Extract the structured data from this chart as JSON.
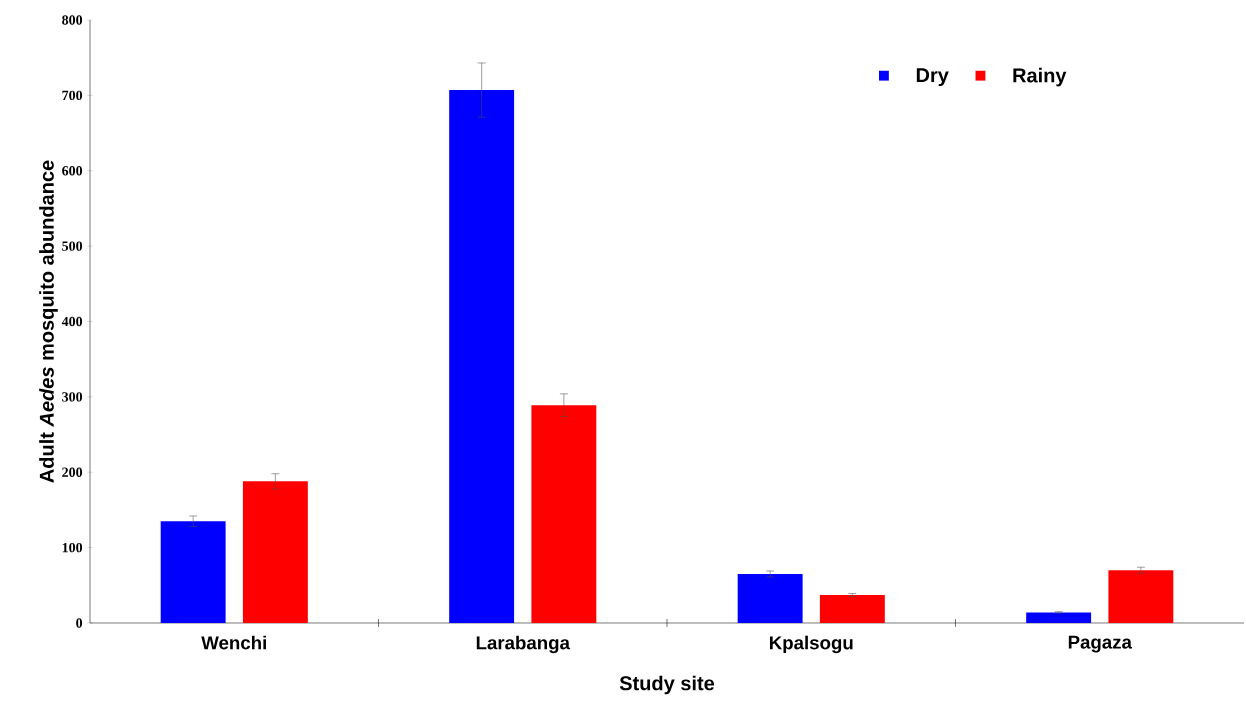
{
  "chart_data": {
    "type": "bar",
    "xlabel": "Study site",
    "ylabel": "Adult *Aedes* mosquito abundance",
    "categories": [
      "Wenchi",
      "Larabanga",
      "Kpalsogu",
      "Pagaza"
    ],
    "series": [
      {
        "name": "Dry",
        "color": "#0000ff",
        "values": [
          135,
          707,
          65,
          14
        ],
        "errors": [
          7,
          36,
          4,
          1
        ]
      },
      {
        "name": "Rainy",
        "color": "#ff0000",
        "values": [
          188,
          289,
          37,
          70
        ],
        "errors": [
          10,
          15,
          2,
          4
        ]
      }
    ],
    "ylim": [
      0,
      800
    ],
    "yticks": [
      0,
      100,
      200,
      300,
      400,
      500,
      600,
      700,
      800
    ],
    "legend": "top right",
    "grid": false
  }
}
